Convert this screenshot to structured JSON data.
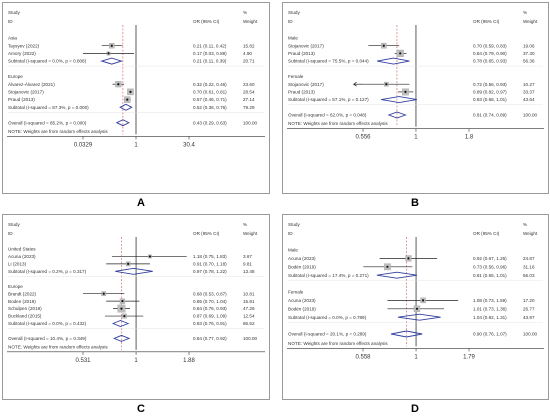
{
  "common": {
    "study_header": "Study",
    "id_header": "ID",
    "or_header": "OR (95% CI)",
    "pct_header": "%",
    "weight_header": "Weight",
    "note": "NOTE: Weights are from random effects analysis"
  },
  "chart_data": [
    {
      "type": "forest",
      "panel_label": "A",
      "xscale": "log",
      "xlim": [
        0.0329,
        30.4
      ],
      "ticks": [
        "0.0329",
        "1",
        "30.4"
      ],
      "tick_values": [
        0.0329,
        1,
        30.4
      ],
      "overall_value": 0.43,
      "rows": [
        {
          "kind": "group",
          "label": "Asia"
        },
        {
          "kind": "study",
          "label": "Taysyev (2022)",
          "or": 0.21,
          "lo": 0.11,
          "hi": 0.42,
          "ci": "0.21 (0.11, 0.42)",
          "weight": "15.82"
        },
        {
          "kind": "study",
          "label": "Amory (2022)",
          "or": 0.17,
          "lo": 0.03,
          "hi": 0.88,
          "ci": "0.17 (0.03, 0.88)",
          "weight": "4.90"
        },
        {
          "kind": "subtotal",
          "label": "Subtotal (I-squared = 0.0%, p = 0.808)",
          "or": 0.21,
          "lo": 0.11,
          "hi": 0.39,
          "ci": "0.21 (0.11, 0.39)",
          "weight": "20.71"
        },
        {
          "kind": "blank"
        },
        {
          "kind": "group",
          "label": "Europe"
        },
        {
          "kind": "study",
          "label": "Álvarez-Álvarez (2021)",
          "or": 0.32,
          "lo": 0.22,
          "hi": 0.46,
          "ci": "0.32 (0.22, 0.46)",
          "weight": "23.60"
        },
        {
          "kind": "study",
          "label": "Stojanovic (2017)",
          "or": 0.7,
          "lo": 0.61,
          "hi": 0.81,
          "ci": "0.70 (0.61, 0.81)",
          "weight": "28.54"
        },
        {
          "kind": "study",
          "label": "Praud (2013)",
          "or": 0.57,
          "lo": 0.46,
          "hi": 0.71,
          "ci": "0.57 (0.46, 0.71)",
          "weight": "27.14"
        },
        {
          "kind": "subtotal",
          "label": "Subtotal (I-squared = 87.3%, p = 0.000)",
          "or": 0.52,
          "lo": 0.36,
          "hi": 0.76,
          "ci": "0.52 (0.36, 0.76)",
          "weight": "79.29"
        },
        {
          "kind": "blank"
        },
        {
          "kind": "overall",
          "label": "Overall (I-squared = 85.2%, p = 0.000)",
          "or": 0.43,
          "lo": 0.29,
          "hi": 0.63,
          "ci": "0.43 (0.29, 0.63)",
          "weight": "100.00"
        }
      ]
    },
    {
      "type": "forest",
      "panel_label": "B",
      "xscale": "log",
      "xlim": [
        0.556,
        1.8
      ],
      "ticks": [
        "0.556",
        "1",
        "1.8"
      ],
      "tick_values": [
        0.556,
        1,
        1.8
      ],
      "overall_value": 0.81,
      "rows": [
        {
          "kind": "group",
          "label": "Male"
        },
        {
          "kind": "study",
          "label": "Stojanovic (2017)",
          "or": 0.7,
          "lo": 0.59,
          "hi": 0.83,
          "ci": "0.70 (0.59, 0.83)",
          "weight": "19.06"
        },
        {
          "kind": "study",
          "label": "Praud (2013)",
          "or": 0.84,
          "lo": 0.79,
          "hi": 0.9,
          "ci": "0.84 (0.79, 0.90)",
          "weight": "37.30"
        },
        {
          "kind": "subtotal",
          "label": "Subtotal (I-squared = 75.5%, p = 0.044)",
          "or": 0.78,
          "lo": 0.65,
          "hi": 0.93,
          "ci": "0.78 (0.65, 0.93)",
          "weight": "56.36"
        },
        {
          "kind": "blank"
        },
        {
          "kind": "group",
          "label": "Female"
        },
        {
          "kind": "study",
          "label": "Stojanovic (2017)",
          "or": 0.72,
          "lo": 0.56,
          "hi": 0.93,
          "ci": "0.72 (0.56, 0.93)",
          "weight": "10.27",
          "arrow": "left"
        },
        {
          "kind": "study",
          "label": "Praud (2013)",
          "or": 0.89,
          "lo": 0.82,
          "hi": 0.97,
          "ci": "0.89 (0.82, 0.97)",
          "weight": "33.37"
        },
        {
          "kind": "subtotal",
          "label": "Subtotal (I-squared = 57.1%, p = 0.127)",
          "or": 0.83,
          "lo": 0.68,
          "hi": 1.01,
          "ci": "0.83 (0.68, 1.01)",
          "weight": "43.64"
        },
        {
          "kind": "blank"
        },
        {
          "kind": "overall",
          "label": "Overall (I-squared = 62.0%, p = 0.048)",
          "or": 0.81,
          "lo": 0.74,
          "hi": 0.89,
          "ci": "0.81 (0.74, 0.89)",
          "weight": "100.00"
        }
      ]
    },
    {
      "type": "forest",
      "panel_label": "C",
      "xscale": "log",
      "xlim": [
        0.531,
        1.88
      ],
      "ticks": [
        "0.531",
        "1",
        "1.88"
      ],
      "tick_values": [
        0.531,
        1,
        1.88
      ],
      "overall_value": 0.84,
      "rows": [
        {
          "kind": "group",
          "label": "United States"
        },
        {
          "kind": "study",
          "label": "Acuna (2023)",
          "or": 1.18,
          "lo": 0.75,
          "hi": 1.83,
          "ci": "1.18 (0.75, 1.83)",
          "weight": "3.67"
        },
        {
          "kind": "study",
          "label": "Li (2013)",
          "or": 0.91,
          "lo": 0.7,
          "hi": 1.18,
          "ci": "0.91 (0.70, 1.18)",
          "weight": "9.81"
        },
        {
          "kind": "subtotal",
          "label": "Subtotal (I-squared = 0.2%, p = 0.317)",
          "or": 0.97,
          "lo": 0.78,
          "hi": 1.22,
          "ci": "0.97 (0.78, 1.22)",
          "weight": "13.48"
        },
        {
          "kind": "blank"
        },
        {
          "kind": "group",
          "label": "Europe"
        },
        {
          "kind": "study",
          "label": "Brandt (2022)",
          "or": 0.68,
          "lo": 0.53,
          "hi": 0.87,
          "ci": "0.68 (0.53, 0.87)",
          "weight": "10.81"
        },
        {
          "kind": "study",
          "label": "Boden (2019)",
          "or": 0.85,
          "lo": 0.7,
          "hi": 1.04,
          "ci": "0.85 (0.70, 1.04)",
          "weight": "15.91"
        },
        {
          "kind": "study",
          "label": "Schulpen (2019)",
          "or": 0.84,
          "lo": 0.76,
          "hi": 0.93,
          "ci": "0.84 (0.76, 0.93)",
          "weight": "47.26"
        },
        {
          "kind": "study",
          "label": "Buckland (2015)",
          "or": 0.87,
          "lo": 0.69,
          "hi": 1.09,
          "ci": "0.87 (0.69, 1.09)",
          "weight": "12.54"
        },
        {
          "kind": "subtotal",
          "label": "Subtotal (I-squared = 0.0%, p = 0.432)",
          "or": 0.83,
          "lo": 0.76,
          "hi": 0.91,
          "ci": "0.83 (0.76, 0.91)",
          "weight": "86.52"
        },
        {
          "kind": "blank"
        },
        {
          "kind": "overall",
          "label": "Overall (I-squared = 10.4%, p = 0.349)",
          "or": 0.84,
          "lo": 0.77,
          "hi": 0.92,
          "ci": "0.84 (0.77, 0.92)",
          "weight": "100.00"
        }
      ]
    },
    {
      "type": "forest",
      "panel_label": "D",
      "xscale": "log",
      "xlim": [
        0.558,
        1.79
      ],
      "ticks": [
        "0.558",
        "1",
        "1.79"
      ],
      "tick_values": [
        0.558,
        1,
        1.79
      ],
      "overall_value": 0.9,
      "rows": [
        {
          "kind": "group",
          "label": "Male"
        },
        {
          "kind": "study",
          "label": "Acuna (2023)",
          "or": 0.92,
          "lo": 0.67,
          "hi": 1.26,
          "ci": "0.92 (0.67, 1.26)",
          "weight": "24.87"
        },
        {
          "kind": "study",
          "label": "Bodén (2019)",
          "or": 0.73,
          "lo": 0.56,
          "hi": 0.96,
          "ci": "0.73 (0.56, 0.96)",
          "weight": "31.16"
        },
        {
          "kind": "subtotal",
          "label": "Subtotal (I-squared = 17.4%, p = 0.271)",
          "or": 0.81,
          "lo": 0.65,
          "hi": 1.01,
          "ci": "0.81 (0.65, 1.01)",
          "weight": "56.03"
        },
        {
          "kind": "blank"
        },
        {
          "kind": "group",
          "label": "Female"
        },
        {
          "kind": "study",
          "label": "Acuna (2023)",
          "or": 1.08,
          "lo": 0.73,
          "hi": 1.59,
          "ci": "1.08 (0.73, 1.59)",
          "weight": "17.20"
        },
        {
          "kind": "study",
          "label": "Bodén (2019)",
          "or": 1.01,
          "lo": 0.73,
          "hi": 1.36,
          "ci": "1.01 (0.73, 1.36)",
          "weight": "26.77"
        },
        {
          "kind": "subtotal",
          "label": "Subtotal (I-squared = 0.0%, p = 0.789)",
          "or": 1.04,
          "lo": 0.82,
          "hi": 1.31,
          "ci": "1.04 (0.82, 1.31)",
          "weight": "43.97"
        },
        {
          "kind": "blank"
        },
        {
          "kind": "overall",
          "label": "Overall (I-squared = 20.1%, p = 0.289)",
          "or": 0.9,
          "lo": 0.76,
          "hi": 1.07,
          "ci": "0.90 (0.76, 1.07)",
          "weight": "100.00"
        }
      ]
    }
  ]
}
